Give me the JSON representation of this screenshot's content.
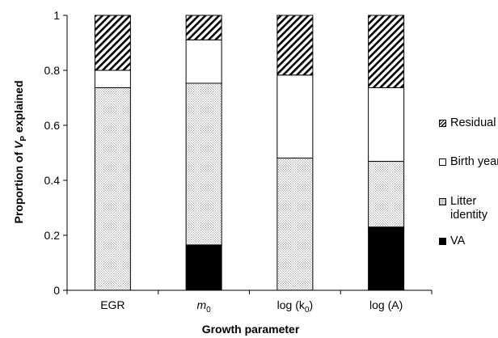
{
  "chart_data": {
    "type": "bar",
    "stacked": true,
    "xlabel": "Growth parameter",
    "ylabel_main": "Proportion of ",
    "ylabel_var": "V",
    "ylabel_sub": "P",
    "ylabel_tail": " explained",
    "ylim": [
      0,
      1
    ],
    "yticks": [
      "0",
      "0.2",
      "0.4",
      "0.6",
      "0.8",
      "1"
    ],
    "categories": [
      "EGR",
      "m0",
      "log (k0)",
      "log (A)"
    ],
    "category_labels": [
      {
        "main": "EGR",
        "sub": ""
      },
      {
        "main": "m",
        "sub": "0"
      },
      {
        "main": "log (k",
        "sub": "0",
        "tail": ")"
      },
      {
        "main": "log (A)",
        "sub": ""
      }
    ],
    "series": [
      {
        "name": "VA",
        "values": [
          0.0,
          0.165,
          0.0,
          0.23
        ],
        "pattern": "solid",
        "color": "#000000"
      },
      {
        "name": "Litter identity",
        "values": [
          0.737,
          0.588,
          0.481,
          0.239
        ],
        "pattern": "dots",
        "color": "#555555"
      },
      {
        "name": "Birth year",
        "values": [
          0.063,
          0.158,
          0.302,
          0.268
        ],
        "pattern": "none",
        "color": "#ffffff"
      },
      {
        "name": "Residual",
        "values": [
          0.2,
          0.089,
          0.217,
          0.263
        ],
        "pattern": "hatch",
        "color": "#000000"
      }
    ],
    "legend_position": "right",
    "grid": false
  },
  "legend": {
    "residual": "Residual",
    "birth_year": "Birth year",
    "litter_line1": "Litter",
    "litter_line2": "identity",
    "va": "VA"
  }
}
